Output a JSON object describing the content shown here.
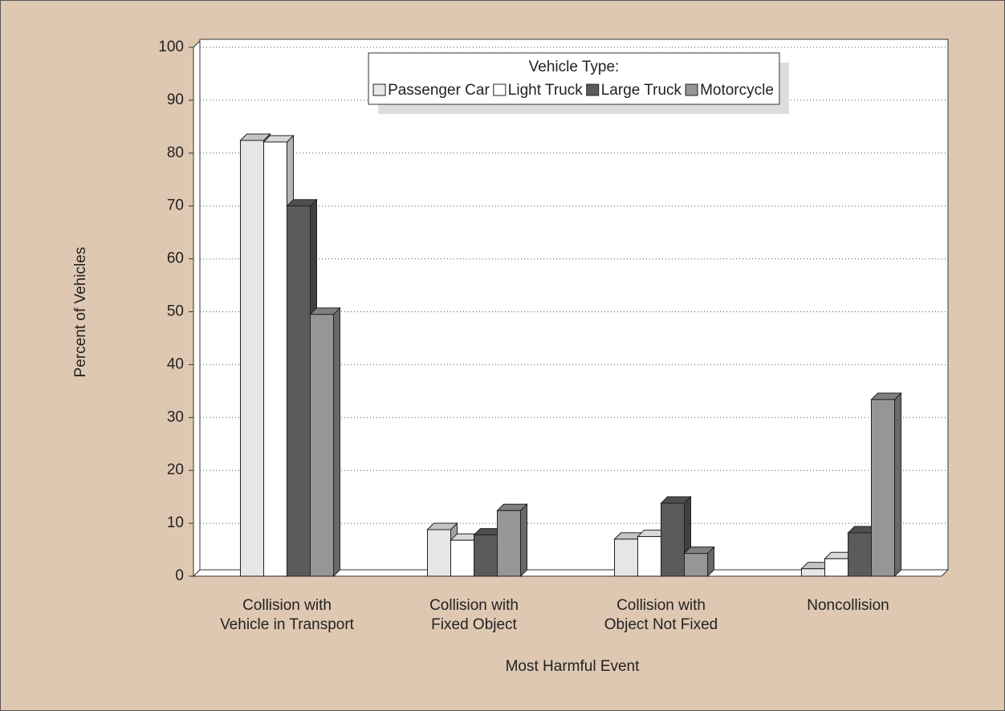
{
  "chart_data": {
    "type": "bar3d",
    "x_label": "Most Harmful Event",
    "y_label": "Percent of Vehicles",
    "legend_title": "Vehicle Type:",
    "legend_position": "top-center",
    "categories": [
      "Collision with\nVehicle in Transport",
      "Collision with\nFixed Object",
      "Collision with\nObject Not Fixed",
      "Noncollision"
    ],
    "series": [
      {
        "name": "Passenger Car",
        "color": "#e6e6e6",
        "values": [
          82.4,
          8.8,
          7.0,
          1.4
        ]
      },
      {
        "name": "Light Truck",
        "color": "#ffffff",
        "values": [
          82.1,
          6.8,
          7.5,
          3.3
        ]
      },
      {
        "name": "Large Truck",
        "color": "#5a5c5a",
        "values": [
          70.0,
          7.8,
          13.8,
          8.2
        ]
      },
      {
        "name": "Motorcycle",
        "color": "#969696",
        "values": [
          49.5,
          12.4,
          4.3,
          33.4
        ]
      }
    ],
    "ylim": [
      0,
      100
    ],
    "yticks": [
      0,
      10,
      20,
      30,
      40,
      50,
      60,
      70,
      80,
      90,
      100
    ],
    "grid": true
  }
}
